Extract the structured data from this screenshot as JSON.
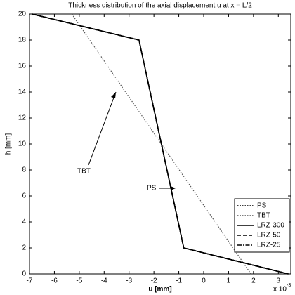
{
  "chart_data": {
    "type": "line",
    "title": "Thickness distribution of the axial displacement u at x = L/2",
    "x_label": "u [mm]",
    "y_label": "h [mm]",
    "x_multiplier": "x 10",
    "x_exponent": "-3",
    "xlim": [
      -7,
      3.5
    ],
    "xticks": [
      -7,
      -6,
      -5,
      -4,
      -3,
      -2,
      -1,
      0,
      1,
      2,
      3
    ],
    "ylim": [
      0,
      20
    ],
    "yticks": [
      0,
      2,
      4,
      6,
      8,
      10,
      12,
      14,
      16,
      18,
      20
    ],
    "legend": "east",
    "series": [
      {
        "name": "PS",
        "color": "#000000",
        "linestyle": "dotted",
        "x": [
          -6.9,
          -2.6,
          -0.8,
          3.4
        ],
        "values": [
          20,
          18,
          2,
          0
        ]
      },
      {
        "name": "TBT",
        "color": "#555555",
        "linestyle": "dotted",
        "x": [
          -5.3,
          1.9
        ],
        "values": [
          20,
          0
        ]
      },
      {
        "name": "LRZ-300",
        "color": "#000000",
        "linestyle": "solid",
        "x": [
          -6.9,
          -2.6,
          -0.8,
          3.4
        ],
        "values": [
          20,
          18,
          2,
          0
        ]
      },
      {
        "name": "LRZ-50",
        "color": "#000000",
        "linestyle": "dashed",
        "x": [
          -6.9,
          -2.6,
          -0.8,
          3.4
        ],
        "values": [
          20,
          18,
          2,
          0
        ]
      },
      {
        "name": "LRZ-25",
        "color": "#000000",
        "linestyle": "dashdot",
        "x": [
          -6.9,
          -2.6,
          -0.8,
          3.4
        ],
        "values": [
          20,
          18,
          2,
          0
        ]
      }
    ],
    "annotations": [
      "TBT",
      "PS"
    ]
  }
}
